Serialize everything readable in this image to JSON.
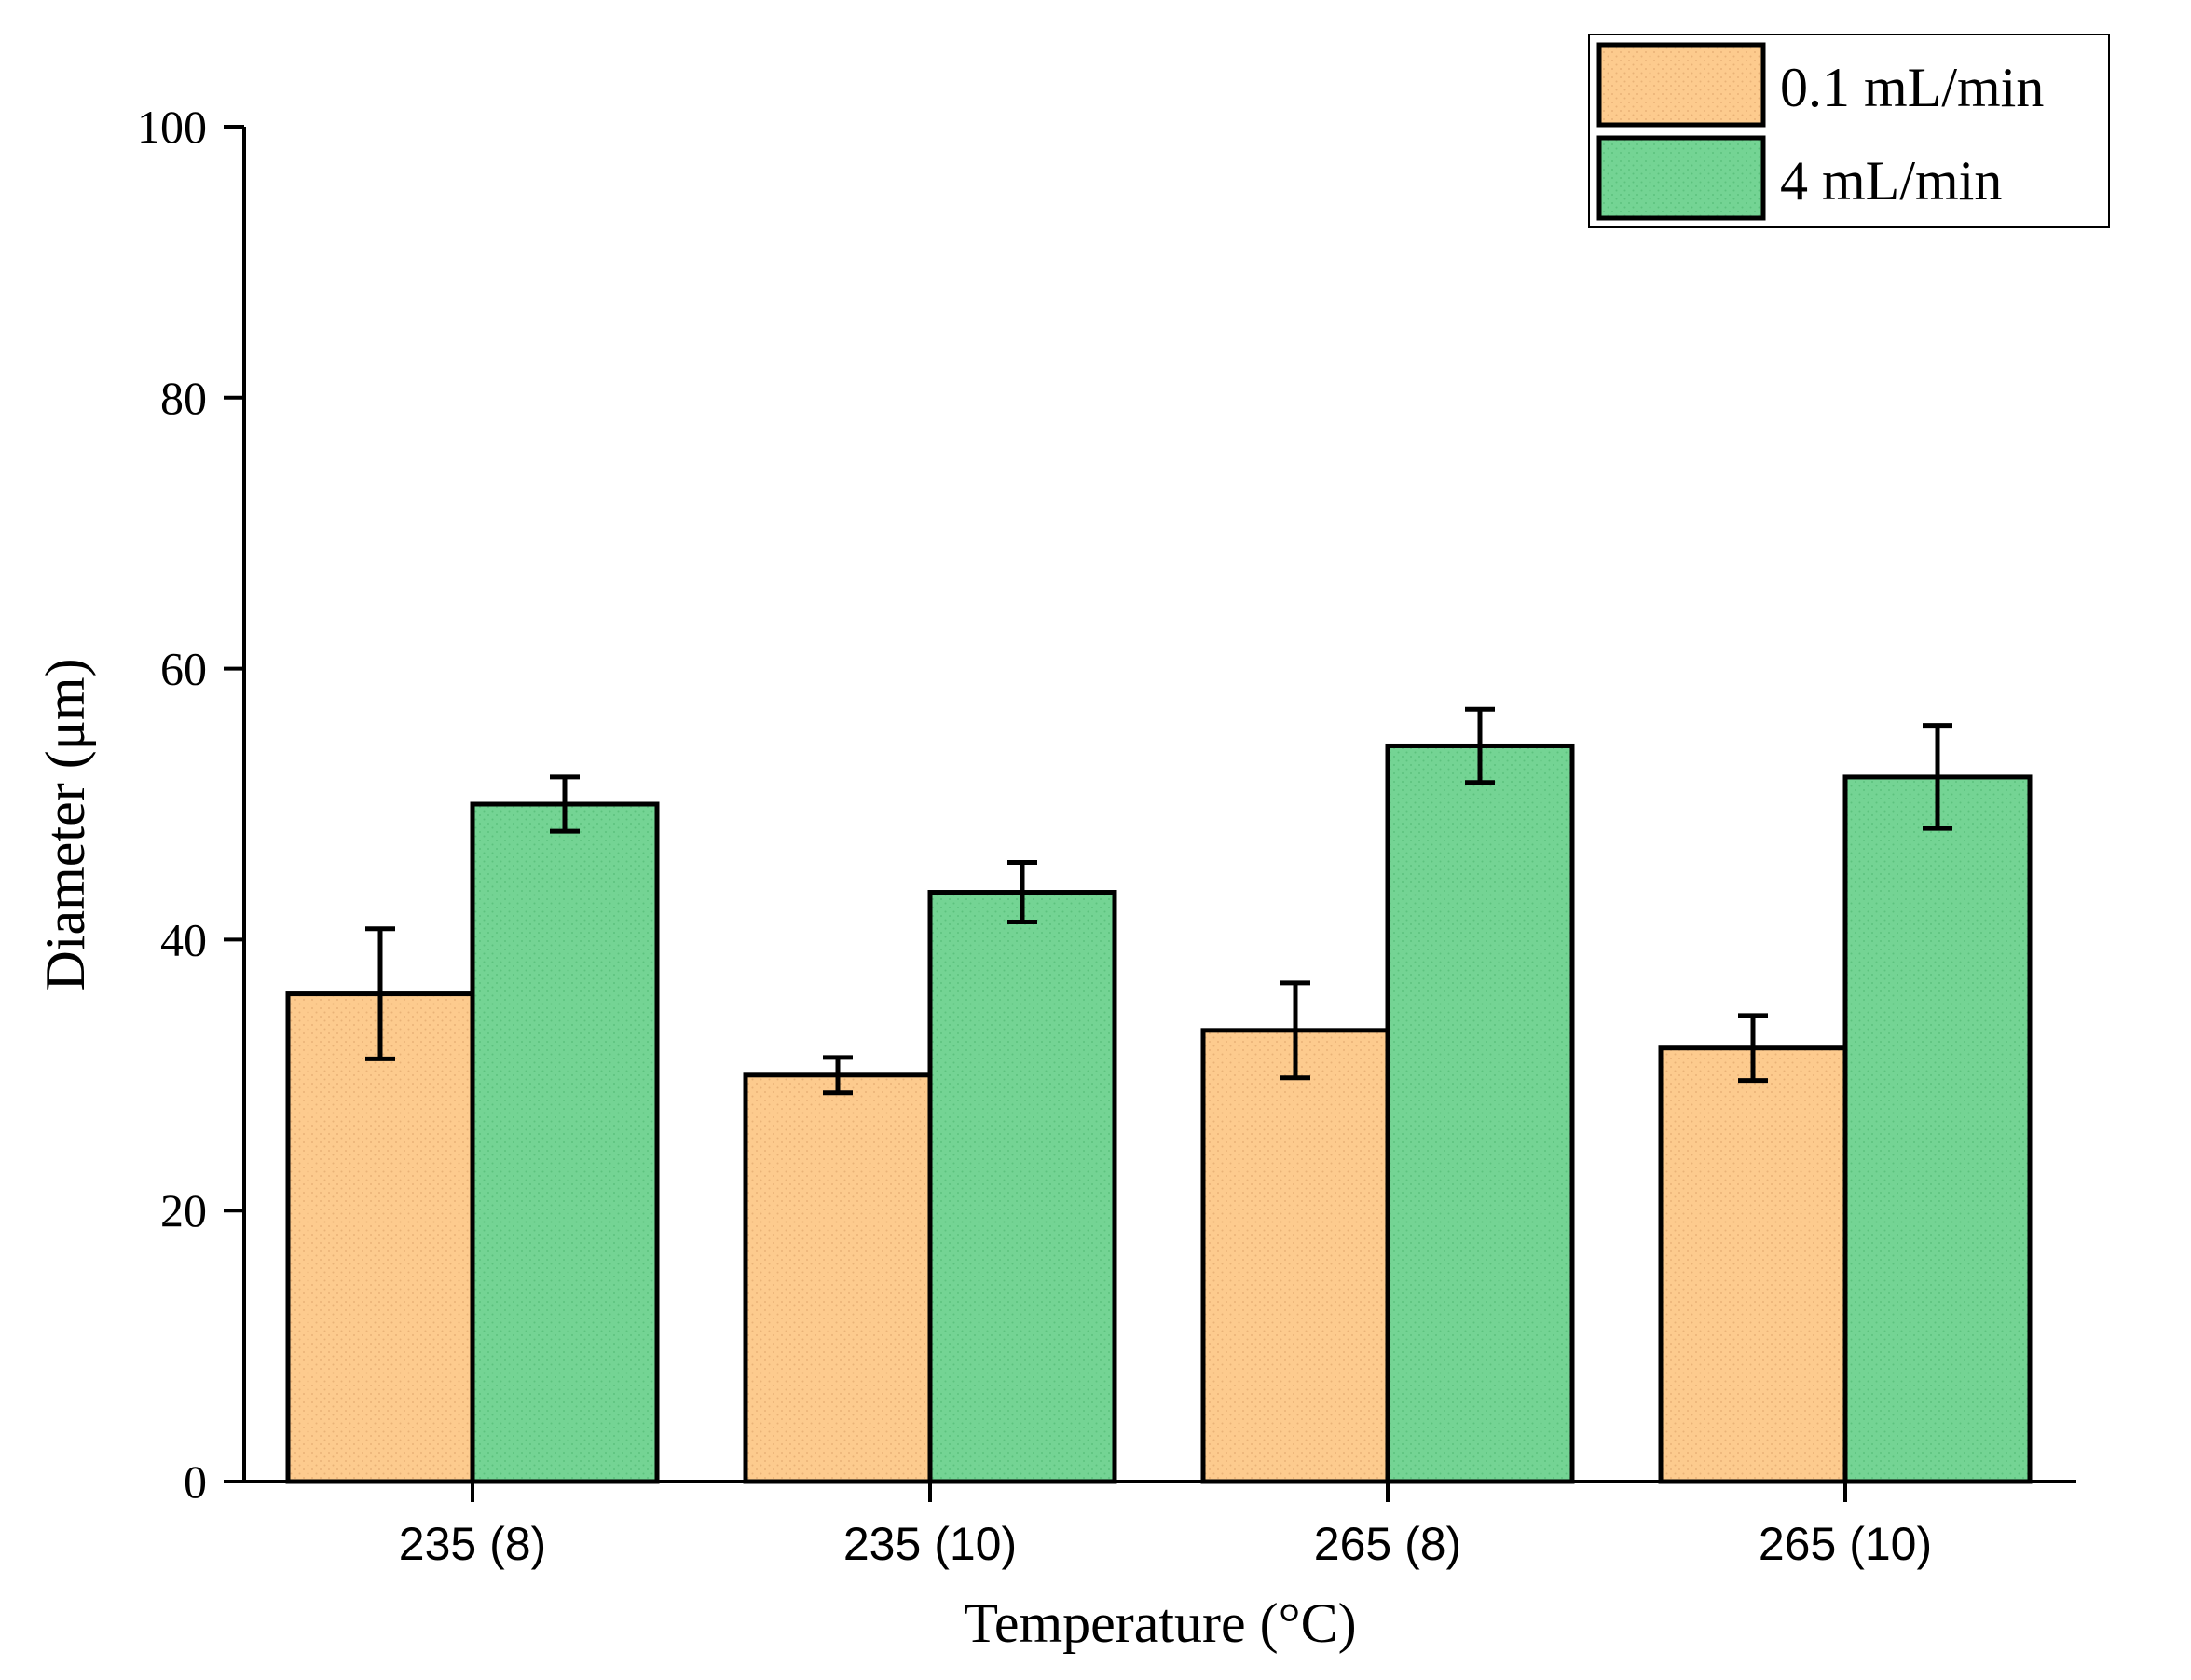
{
  "chart_data": {
    "type": "bar",
    "title": "",
    "xlabel": "Temperature (°C)",
    "ylabel": "Diameter (μm)",
    "ylim": [
      0,
      100
    ],
    "yticks": [
      0,
      20,
      40,
      60,
      80,
      100
    ],
    "categories": [
      "235 (8)",
      "235 (10)",
      "265 (8)",
      "265 (10)"
    ],
    "series": [
      {
        "name": "0.1 mL/min",
        "color": "#FDCB8E",
        "values": [
          36,
          30,
          33.3,
          32
        ],
        "errors": [
          4.8,
          1.3,
          3.5,
          2.4
        ]
      },
      {
        "name": "4 mL/min",
        "color": "#74D494",
        "values": [
          50,
          43.5,
          54.3,
          52
        ],
        "errors": [
          2.0,
          2.2,
          2.7,
          3.8
        ]
      }
    ],
    "legend_position": "top-right",
    "grid": false
  }
}
